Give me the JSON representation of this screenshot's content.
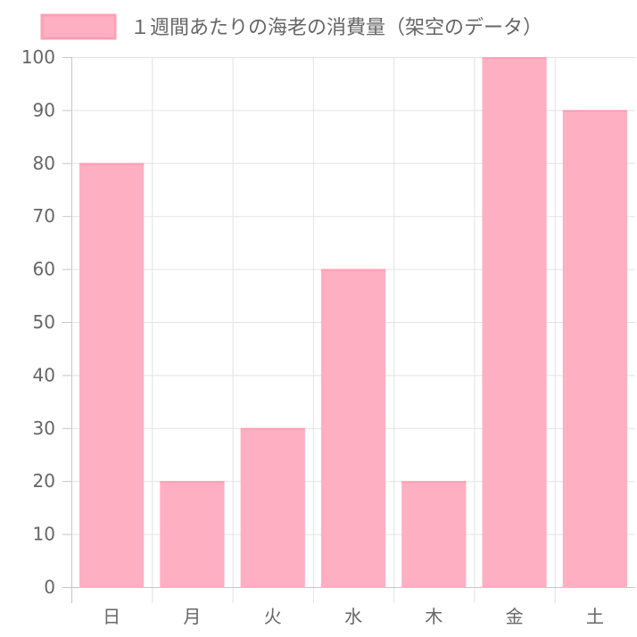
{
  "chart_data": {
    "type": "bar",
    "categories": [
      "日",
      "月",
      "火",
      "水",
      "木",
      "金",
      "土"
    ],
    "series": [
      {
        "name": "１週間あたりの海老の消費量（架空のデータ）",
        "values": [
          80,
          20,
          30,
          60,
          20,
          100,
          90
        ]
      }
    ],
    "y_ticks": [
      "0",
      "10",
      "20",
      "30",
      "40",
      "50",
      "60",
      "70",
      "80",
      "90",
      "100"
    ],
    "ylim": [
      0,
      100
    ],
    "grid": true,
    "legend": "top",
    "colors": {
      "bar_fill": "#ffafc2",
      "bar_border": "#ff9fb5",
      "grid": "#e3e3e3",
      "axis": "#c6c6c6",
      "text": "#666666"
    }
  }
}
